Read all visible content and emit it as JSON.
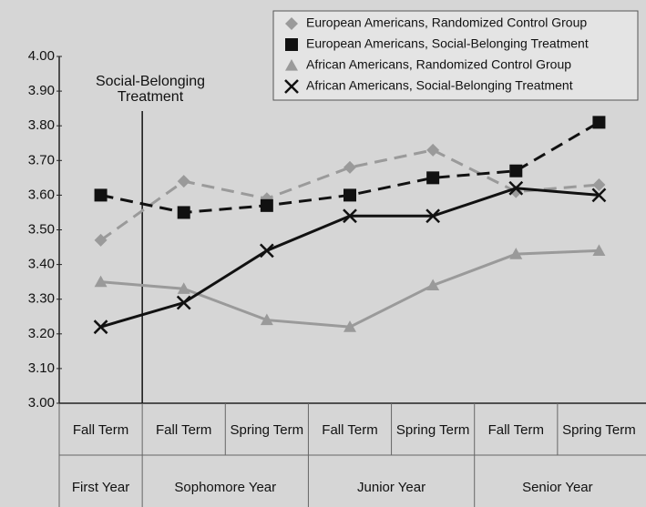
{
  "chart_data": {
    "type": "line",
    "categories": [
      "Fall Term",
      "Fall Term",
      "Spring Term",
      "Fall Term",
      "Spring Term",
      "Fall Term",
      "Spring Term"
    ],
    "groups": [
      "First Year",
      "Sophomore Year",
      "Junior Year",
      "Senior Year"
    ],
    "annotation": [
      "Social-Belonging",
      "Treatment"
    ],
    "series": [
      {
        "name": "European Americans, Randomized Control Group",
        "color": "#9a9a9a",
        "marker": "diamond",
        "dashed": true,
        "values": [
          3.47,
          3.64,
          3.59,
          3.68,
          3.73,
          3.61,
          3.63
        ]
      },
      {
        "name": "European Americans, Social-Belonging Treatment",
        "color": "#111111",
        "marker": "square",
        "dashed": true,
        "values": [
          3.6,
          3.55,
          3.57,
          3.6,
          3.65,
          3.67,
          3.81
        ]
      },
      {
        "name": "African Americans, Randomized Control Group",
        "color": "#9a9a9a",
        "marker": "triangle",
        "dashed": false,
        "values": [
          3.35,
          3.33,
          3.24,
          3.22,
          3.34,
          3.43,
          3.44
        ]
      },
      {
        "name": "African Americans, Social-Belonging Treatment",
        "color": "#111111",
        "marker": "x",
        "dashed": false,
        "values": [
          3.22,
          3.29,
          3.44,
          3.54,
          3.54,
          3.62,
          3.6
        ]
      }
    ],
    "ylim": [
      3.0,
      4.0
    ],
    "yticks": [
      {
        "value": 3.0,
        "label": "3.00"
      },
      {
        "value": 3.1,
        "label": "3.10"
      },
      {
        "value": 3.2,
        "label": "3.20"
      },
      {
        "value": 3.3,
        "label": "3.30"
      },
      {
        "value": 3.4,
        "label": "3.40"
      },
      {
        "value": 3.5,
        "label": "3.50"
      },
      {
        "value": 3.6,
        "label": "3.60"
      },
      {
        "value": 3.7,
        "label": "3.70"
      },
      {
        "value": 3.8,
        "label": "3.80"
      },
      {
        "value": 3.9,
        "label": "3.90"
      },
      {
        "value": 4.0,
        "label": "4.00"
      }
    ],
    "grid": false,
    "legend": "top-right"
  }
}
